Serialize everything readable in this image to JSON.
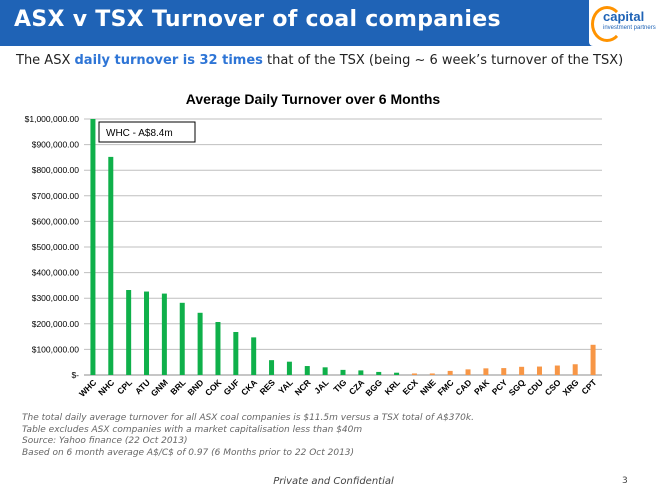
{
  "header": {
    "title": "ASX v TSX Turnover of coal companies",
    "logo_word": "capital",
    "logo_sub": "investment partners"
  },
  "subtitle": {
    "part1": "The ASX ",
    "highlight": "daily turnover is 32 times",
    "part2": " that of the TSX (being ~ 6 week’s turnover of the TSX)"
  },
  "colors": {
    "title_bar": "#1f63b6",
    "asx": "#0fb04a",
    "tsx": "#f79646",
    "highlight": "#2e75d6",
    "logo_ring": "#ff9300"
  },
  "chart_data": {
    "type": "bar",
    "title": "Average Daily Turnover over 6 Months",
    "annotation": "WHC - A$8.4m",
    "categories": [
      "WHC",
      "NHC",
      "CPL",
      "ATU",
      "GNM",
      "BRL",
      "BND",
      "COK",
      "GUF",
      "CKA",
      "RES",
      "YAL",
      "NCR",
      "JAL",
      "TIG",
      "CZA",
      "BGG",
      "KRL",
      "ECX",
      "NNE",
      "FMC",
      "CAD",
      "PAK",
      "PCY",
      "SGQ",
      "CDU",
      "CSO",
      "XRG",
      "CPT"
    ],
    "values": [
      1000000,
      852000,
      332000,
      326000,
      318000,
      282000,
      243000,
      207000,
      168000,
      147000,
      58000,
      52000,
      35000,
      30000,
      20000,
      18000,
      12000,
      9000,
      6000,
      6000,
      16000,
      22000,
      26000,
      27000,
      32000,
      33000,
      37000,
      42000,
      118000
    ],
    "series_groups": [
      "ASX",
      "ASX",
      "ASX",
      "ASX",
      "ASX",
      "ASX",
      "ASX",
      "ASX",
      "ASX",
      "ASX",
      "ASX",
      "ASX",
      "ASX",
      "ASX",
      "ASX",
      "ASX",
      "ASX",
      "ASX",
      "TSX",
      "TSX",
      "TSX",
      "TSX",
      "TSX",
      "TSX",
      "TSX",
      "TSX",
      "TSX",
      "TSX",
      "TSX"
    ],
    "ylim": [
      0,
      1000000
    ],
    "yticks": [
      0,
      100000,
      200000,
      300000,
      400000,
      500000,
      600000,
      700000,
      800000,
      900000,
      1000000
    ],
    "ytick_labels": [
      "$-",
      "$100,000.00",
      "$200,000.00",
      "$300,000.00",
      "$400,000.00",
      "$500,000.00",
      "$600,000.00",
      "$700,000.00",
      "$800,000.00",
      "$900,000.00",
      "$1,000,000.00"
    ],
    "grid": true
  },
  "notes": [
    "The total daily average turnover for all ASX coal companies is $11.5m versus a TSX total of A$370k.",
    "Table excludes ASX companies with a market capitalisation less than $40m",
    "Source: Yahoo finance (22 Oct 2013)",
    "Based on 6 month average A$/C$ of 0.97 (6 Months prior to 22 Oct 2013)"
  ],
  "footer": {
    "text": "Private and Confidential",
    "page": "3"
  }
}
